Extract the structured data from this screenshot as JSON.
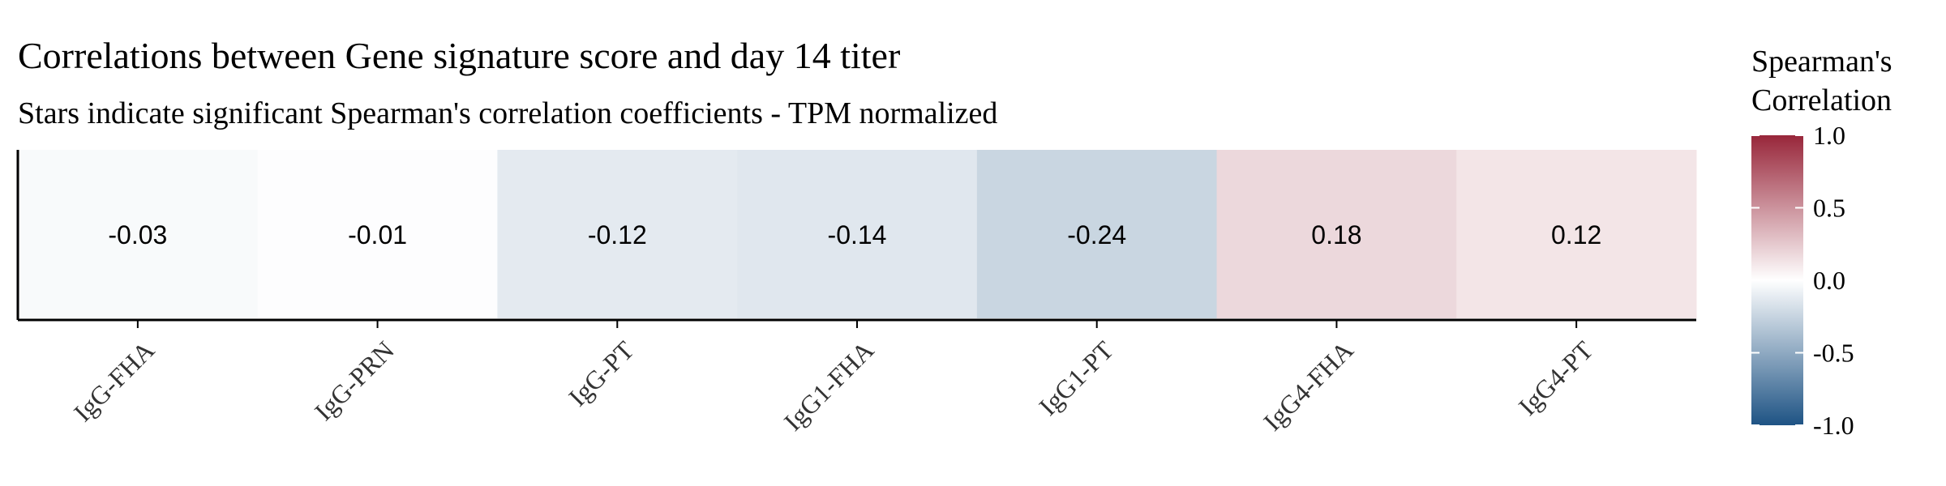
{
  "chart_data": {
    "type": "heatmap",
    "title": "Correlations between Gene signature score and day 14 titer",
    "subtitle": "Stars indicate significant Spearman's correlation coefficients - TPM normalized",
    "categories": [
      "IgG-FHA",
      "IgG-PRN",
      "IgG-PT",
      "IgG1-FHA",
      "IgG1-PT",
      "IgG4-FHA",
      "IgG4-PT"
    ],
    "values": [
      -0.03,
      -0.01,
      -0.12,
      -0.14,
      -0.24,
      0.18,
      0.12
    ],
    "value_labels": [
      "-0.03",
      "-0.01",
      "-0.12",
      "-0.14",
      "-0.24",
      "0.18",
      "0.12"
    ],
    "xlabel": "",
    "ylabel": "",
    "legend": {
      "title_line1": "Spearman's",
      "title_line2": "Correlation",
      "ticks": [
        1.0,
        0.5,
        0.0,
        -0.5,
        -1.0
      ],
      "tick_labels": [
        "1.0",
        "0.5",
        "0.0",
        "-0.5",
        "-1.0"
      ],
      "range": [
        -1.0,
        1.0
      ],
      "placement": "right"
    },
    "colors": {
      "negative": "#1e5384",
      "neutral": "#ffffff",
      "positive": "#98263a",
      "axis": "#000000"
    },
    "grid": false
  }
}
